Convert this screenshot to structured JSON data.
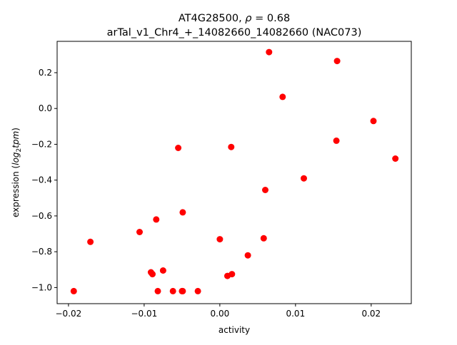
{
  "chart_data": {
    "type": "scatter",
    "title_line1_prefix": "AT4G28500, ",
    "title_line1_rho_symbol": "ρ",
    "title_line1_rho_value": " = 0.68",
    "title_line2": "arTal_v1_Chr4_+_14082660_14082660 (NAC073)",
    "xlabel": "activity",
    "ylabel_prefix": "expression (",
    "ylabel_math": "log",
    "ylabel_sub": "2",
    "ylabel_math2": "tpm",
    "ylabel_suffix": ")",
    "xlim": [
      -0.0215,
      0.0253
    ],
    "ylim": [
      -1.09,
      0.375
    ],
    "x_ticks": [
      {
        "value": -0.02,
        "label": "−0.02"
      },
      {
        "value": -0.01,
        "label": "−0.01"
      },
      {
        "value": 0.0,
        "label": "0.00"
      },
      {
        "value": 0.01,
        "label": "0.01"
      },
      {
        "value": 0.02,
        "label": "0.02"
      }
    ],
    "y_ticks": [
      {
        "value": 0.2,
        "label": "0.2"
      },
      {
        "value": 0.0,
        "label": "0.0"
      },
      {
        "value": -0.2,
        "label": "−0.2"
      },
      {
        "value": -0.4,
        "label": "−0.4"
      },
      {
        "value": -0.6,
        "label": "−0.6"
      },
      {
        "value": -0.8,
        "label": "−0.8"
      },
      {
        "value": -1.0,
        "label": "−1.0"
      }
    ],
    "point_color": "#ff0000",
    "points": [
      {
        "x": -0.0193,
        "y": -1.02
      },
      {
        "x": -0.0171,
        "y": -0.745
      },
      {
        "x": -0.0106,
        "y": -0.69
      },
      {
        "x": -0.0091,
        "y": -0.915
      },
      {
        "x": -0.0089,
        "y": -0.925
      },
      {
        "x": -0.0084,
        "y": -0.62
      },
      {
        "x": -0.0082,
        "y": -1.02
      },
      {
        "x": -0.0075,
        "y": -0.905
      },
      {
        "x": -0.0062,
        "y": -1.02
      },
      {
        "x": -0.0055,
        "y": -0.22
      },
      {
        "x": -0.005,
        "y": -1.02
      },
      {
        "x": -0.0049,
        "y": -1.02
      },
      {
        "x": -0.0049,
        "y": -0.58
      },
      {
        "x": -0.0029,
        "y": -1.02
      },
      {
        "x": 0.0,
        "y": -0.73
      },
      {
        "x": 0.001,
        "y": -0.935
      },
      {
        "x": 0.0015,
        "y": -0.215
      },
      {
        "x": 0.0016,
        "y": -0.925
      },
      {
        "x": 0.0037,
        "y": -0.82
      },
      {
        "x": 0.0058,
        "y": -0.725
      },
      {
        "x": 0.006,
        "y": -0.455
      },
      {
        "x": 0.0065,
        "y": 0.315
      },
      {
        "x": 0.0083,
        "y": 0.065
      },
      {
        "x": 0.0111,
        "y": -0.39
      },
      {
        "x": 0.0154,
        "y": -0.18
      },
      {
        "x": 0.0155,
        "y": 0.265
      },
      {
        "x": 0.0203,
        "y": -0.07
      },
      {
        "x": 0.0232,
        "y": -0.28
      }
    ]
  }
}
